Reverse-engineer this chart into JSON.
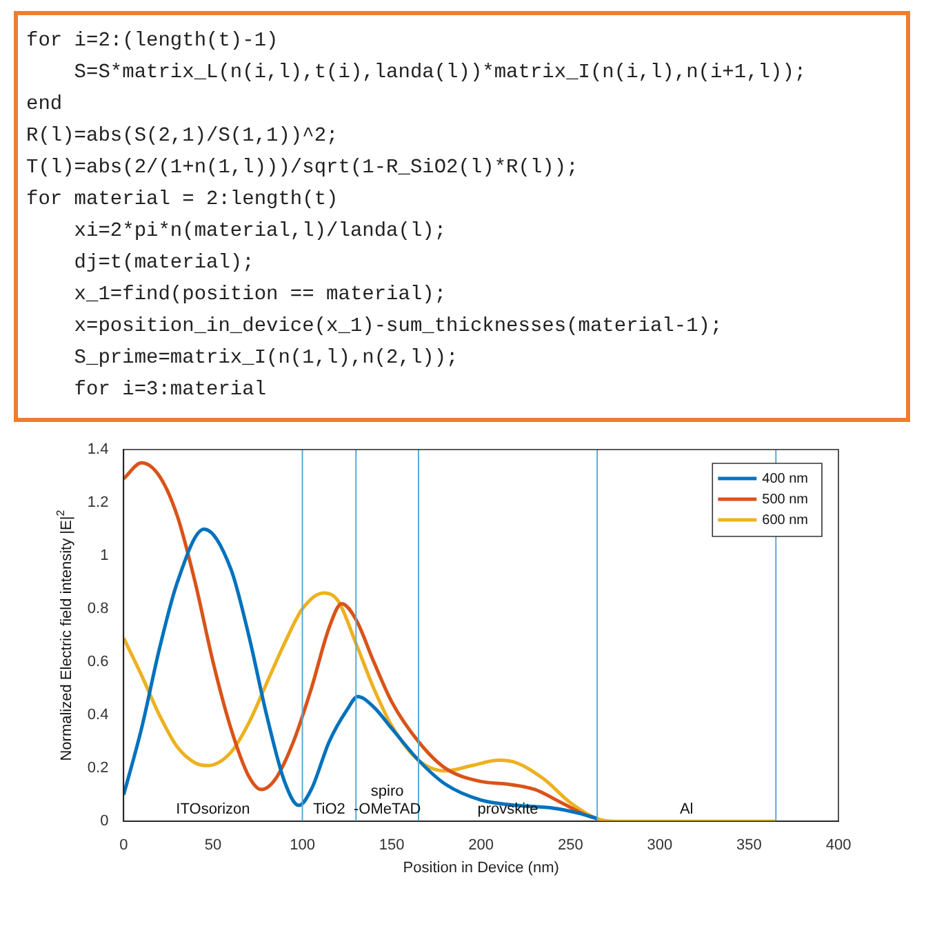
{
  "chart_data": [
    {
      "type": "other",
      "annotations": [
        "for i=2:(length(t)-1)",
        "    S=S*matrix_L(n(i,l),t(i),landa(l))*matrix_I(n(i,l),n(i+1,l));",
        "end",
        "R(l)=abs(S(2,1)/S(1,1))^2;",
        "T(l)=abs(2/(1+n(1,l)))/sqrt(1-R_SiO2(l)*R(l));",
        "for material = 2:length(t)",
        "    xi=2*pi*n(material,l)/landa(l);",
        "    dj=t(material);",
        "    x_1=find(position == material);",
        "    x=position_in_device(x_1)-sum_thicknesses(material-1);",
        "    S_prime=matrix_I(n(1,l),n(2,l));",
        "    for i=3:material"
      ]
    },
    {
      "type": "line",
      "xlabel": "Position in Device (nm)",
      "ylabel": "Normalized Electric field intensity |E|$^{2}$",
      "xlim": [
        0,
        400
      ],
      "xticks": [
        0,
        50,
        100,
        150,
        200,
        250,
        300,
        350,
        400
      ],
      "ylim": [
        0,
        1.4
      ],
      "yticks": [
        0,
        0.2,
        0.4,
        0.6,
        0.8,
        1,
        1.2,
        1.4
      ],
      "grid": false,
      "legend": "top right",
      "marker": "none",
      "line_style": "solid",
      "series": [
        {
          "name": "400 nm",
          "color": "#0072bd",
          "x": [
            0,
            10,
            20,
            30,
            45,
            60,
            70,
            80,
            90,
            98,
            105,
            115,
            125,
            131,
            140,
            150,
            165,
            180,
            200,
            220,
            240,
            255,
            265
          ],
          "values": [
            0.1,
            0.35,
            0.65,
            0.9,
            1.1,
            0.95,
            0.7,
            0.4,
            0.15,
            0.06,
            0.12,
            0.3,
            0.42,
            0.47,
            0.43,
            0.35,
            0.23,
            0.14,
            0.08,
            0.06,
            0.05,
            0.03,
            0.01
          ]
        },
        {
          "name": "500 nm",
          "color": "#d95319",
          "x": [
            0,
            10,
            20,
            30,
            40,
            50,
            60,
            70,
            77,
            85,
            95,
            105,
            115,
            122,
            130,
            140,
            150,
            165,
            180,
            200,
            215,
            230,
            245,
            260,
            265
          ],
          "values": [
            1.29,
            1.35,
            1.3,
            1.15,
            0.9,
            0.6,
            0.35,
            0.17,
            0.12,
            0.16,
            0.3,
            0.5,
            0.73,
            0.82,
            0.76,
            0.6,
            0.45,
            0.3,
            0.2,
            0.15,
            0.14,
            0.12,
            0.07,
            0.02,
            0.01
          ]
        },
        {
          "name": "600 nm",
          "color": "#edb120",
          "x": [
            0,
            10,
            20,
            30,
            40,
            47,
            60,
            70,
            80,
            90,
            100,
            112,
            120,
            130,
            140,
            150,
            165,
            180,
            195,
            210,
            220,
            235,
            250,
            265,
            275,
            365
          ],
          "values": [
            0.69,
            0.55,
            0.4,
            0.28,
            0.22,
            0.21,
            0.26,
            0.37,
            0.52,
            0.67,
            0.8,
            0.86,
            0.83,
            0.67,
            0.5,
            0.36,
            0.23,
            0.19,
            0.21,
            0.23,
            0.22,
            0.16,
            0.07,
            0.01,
            0,
            0
          ]
        }
      ],
      "ref_lines": [
        {
          "axis": "x",
          "value": 100,
          "color": "#5aa9d6"
        },
        {
          "axis": "x",
          "value": 130,
          "color": "#5aa9d6"
        },
        {
          "axis": "x",
          "value": 165,
          "color": "#5aa9d6"
        },
        {
          "axis": "x",
          "value": 265,
          "color": "#5aa9d6"
        },
        {
          "axis": "x",
          "value": 365,
          "color": "#5aa9d6"
        }
      ],
      "annotations": [
        "ITOsorizon",
        "TiO2",
        "spiro\n-OMeTAD",
        "provskite",
        "Al"
      ]
    }
  ]
}
